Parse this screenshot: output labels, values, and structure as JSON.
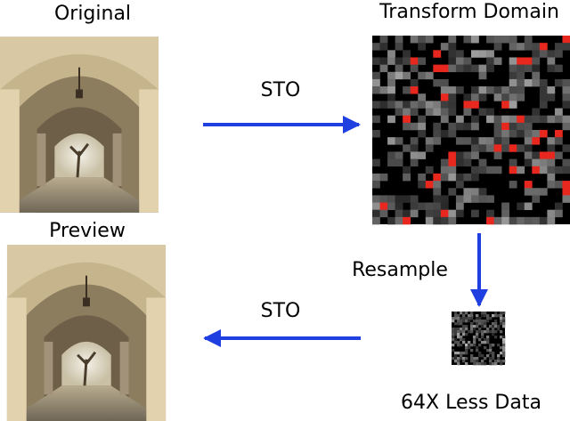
{
  "panels": {
    "original": {
      "title": "Original"
    },
    "transform": {
      "title": "Transform Domain"
    },
    "preview": {
      "title": "Preview"
    },
    "compressed": {
      "caption": "64X Less Data"
    }
  },
  "arrows": [
    {
      "label": "STO"
    },
    {
      "label": "Resample"
    },
    {
      "label": "STO"
    }
  ]
}
